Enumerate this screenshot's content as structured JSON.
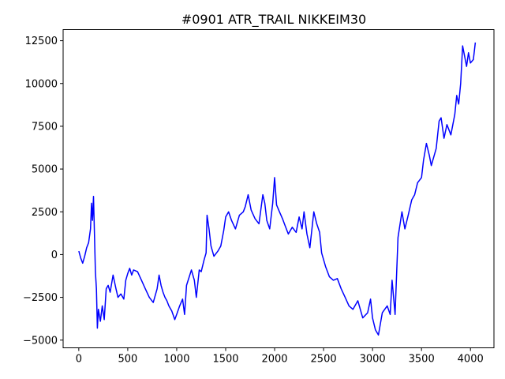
{
  "chart_data": {
    "type": "line",
    "title": "#0901 ATR_TRAIL NIKKEIM30",
    "xlabel": "",
    "ylabel": "",
    "xlim": [
      -160,
      4240
    ],
    "ylim": [
      -5450,
      13150
    ],
    "x_ticks": [
      0,
      500,
      1000,
      1500,
      2000,
      2500,
      3000,
      3500,
      4000
    ],
    "y_ticks": [
      -5000,
      -2500,
      0,
      2500,
      5000,
      7500,
      10000,
      12500
    ],
    "grid": false,
    "legend": "none",
    "series": [
      {
        "color": "#0000ff",
        "x": [
          0,
          20,
          40,
          60,
          80,
          100,
          120,
          130,
          140,
          150,
          160,
          170,
          180,
          190,
          200,
          220,
          240,
          260,
          280,
          300,
          320,
          350,
          380,
          400,
          430,
          460,
          480,
          500,
          520,
          540,
          560,
          600,
          640,
          680,
          720,
          760,
          800,
          820,
          840,
          860,
          880,
          900,
          920,
          950,
          980,
          1000,
          1030,
          1060,
          1080,
          1100,
          1150,
          1180,
          1200,
          1230,
          1250,
          1280,
          1300,
          1310,
          1330,
          1350,
          1380,
          1420,
          1450,
          1480,
          1500,
          1530,
          1560,
          1600,
          1640,
          1680,
          1700,
          1730,
          1760,
          1800,
          1840,
          1880,
          1900,
          1920,
          1950,
          1980,
          2000,
          2020,
          2050,
          2080,
          2100,
          2140,
          2180,
          2220,
          2250,
          2280,
          2300,
          2330,
          2360,
          2400,
          2430,
          2460,
          2480,
          2520,
          2560,
          2600,
          2640,
          2680,
          2720,
          2760,
          2800,
          2850,
          2900,
          2950,
          2980,
          3000,
          3030,
          3060,
          3100,
          3150,
          3180,
          3200,
          3230,
          3260,
          3300,
          3330,
          3360,
          3400,
          3430,
          3460,
          3500,
          3520,
          3550,
          3580,
          3600,
          3650,
          3680,
          3700,
          3730,
          3760,
          3800,
          3840,
          3860,
          3880,
          3900,
          3920,
          3940,
          3960,
          3980,
          4000,
          4030,
          4050
        ],
        "y": [
          200,
          -200,
          -500,
          -100,
          400,
          700,
          1500,
          3000,
          2000,
          3400,
          1200,
          -1000,
          -2000,
          -4300,
          -3200,
          -3900,
          -3000,
          -3800,
          -2000,
          -1800,
          -2200,
          -1200,
          -2000,
          -2500,
          -2300,
          -2600,
          -1500,
          -1100,
          -800,
          -1200,
          -900,
          -1000,
          -1500,
          -2000,
          -2500,
          -2800,
          -2000,
          -1200,
          -1800,
          -2200,
          -2500,
          -2700,
          -3000,
          -3300,
          -3800,
          -3500,
          -3000,
          -2600,
          -3500,
          -1800,
          -900,
          -1500,
          -2500,
          -900,
          -1000,
          -300,
          100,
          2300,
          1500,
          500,
          -100,
          200,
          500,
          1400,
          2200,
          2500,
          2000,
          1500,
          2300,
          2500,
          2800,
          3500,
          2600,
          2100,
          1800,
          3500,
          3000,
          2000,
          1500,
          3000,
          4500,
          2900,
          2500,
          2100,
          1800,
          1200,
          1600,
          1300,
          2200,
          1500,
          2500,
          1200,
          400,
          2500,
          1800,
          1300,
          100,
          -700,
          -1300,
          -1500,
          -1400,
          -2000,
          -2500,
          -3000,
          -3200,
          -2700,
          -3700,
          -3400,
          -2600,
          -3700,
          -4400,
          -4700,
          -3400,
          -3000,
          -3500,
          -1500,
          -3500,
          1000,
          2500,
          1500,
          2200,
          3200,
          3500,
          4200,
          4500,
          5500,
          6500,
          5800,
          5200,
          6200,
          7800,
          8000,
          6800,
          7600,
          7000,
          8200,
          9300,
          8800,
          10000,
          12200,
          11600,
          11000,
          11800,
          11200,
          11400,
          12400
        ]
      }
    ]
  }
}
